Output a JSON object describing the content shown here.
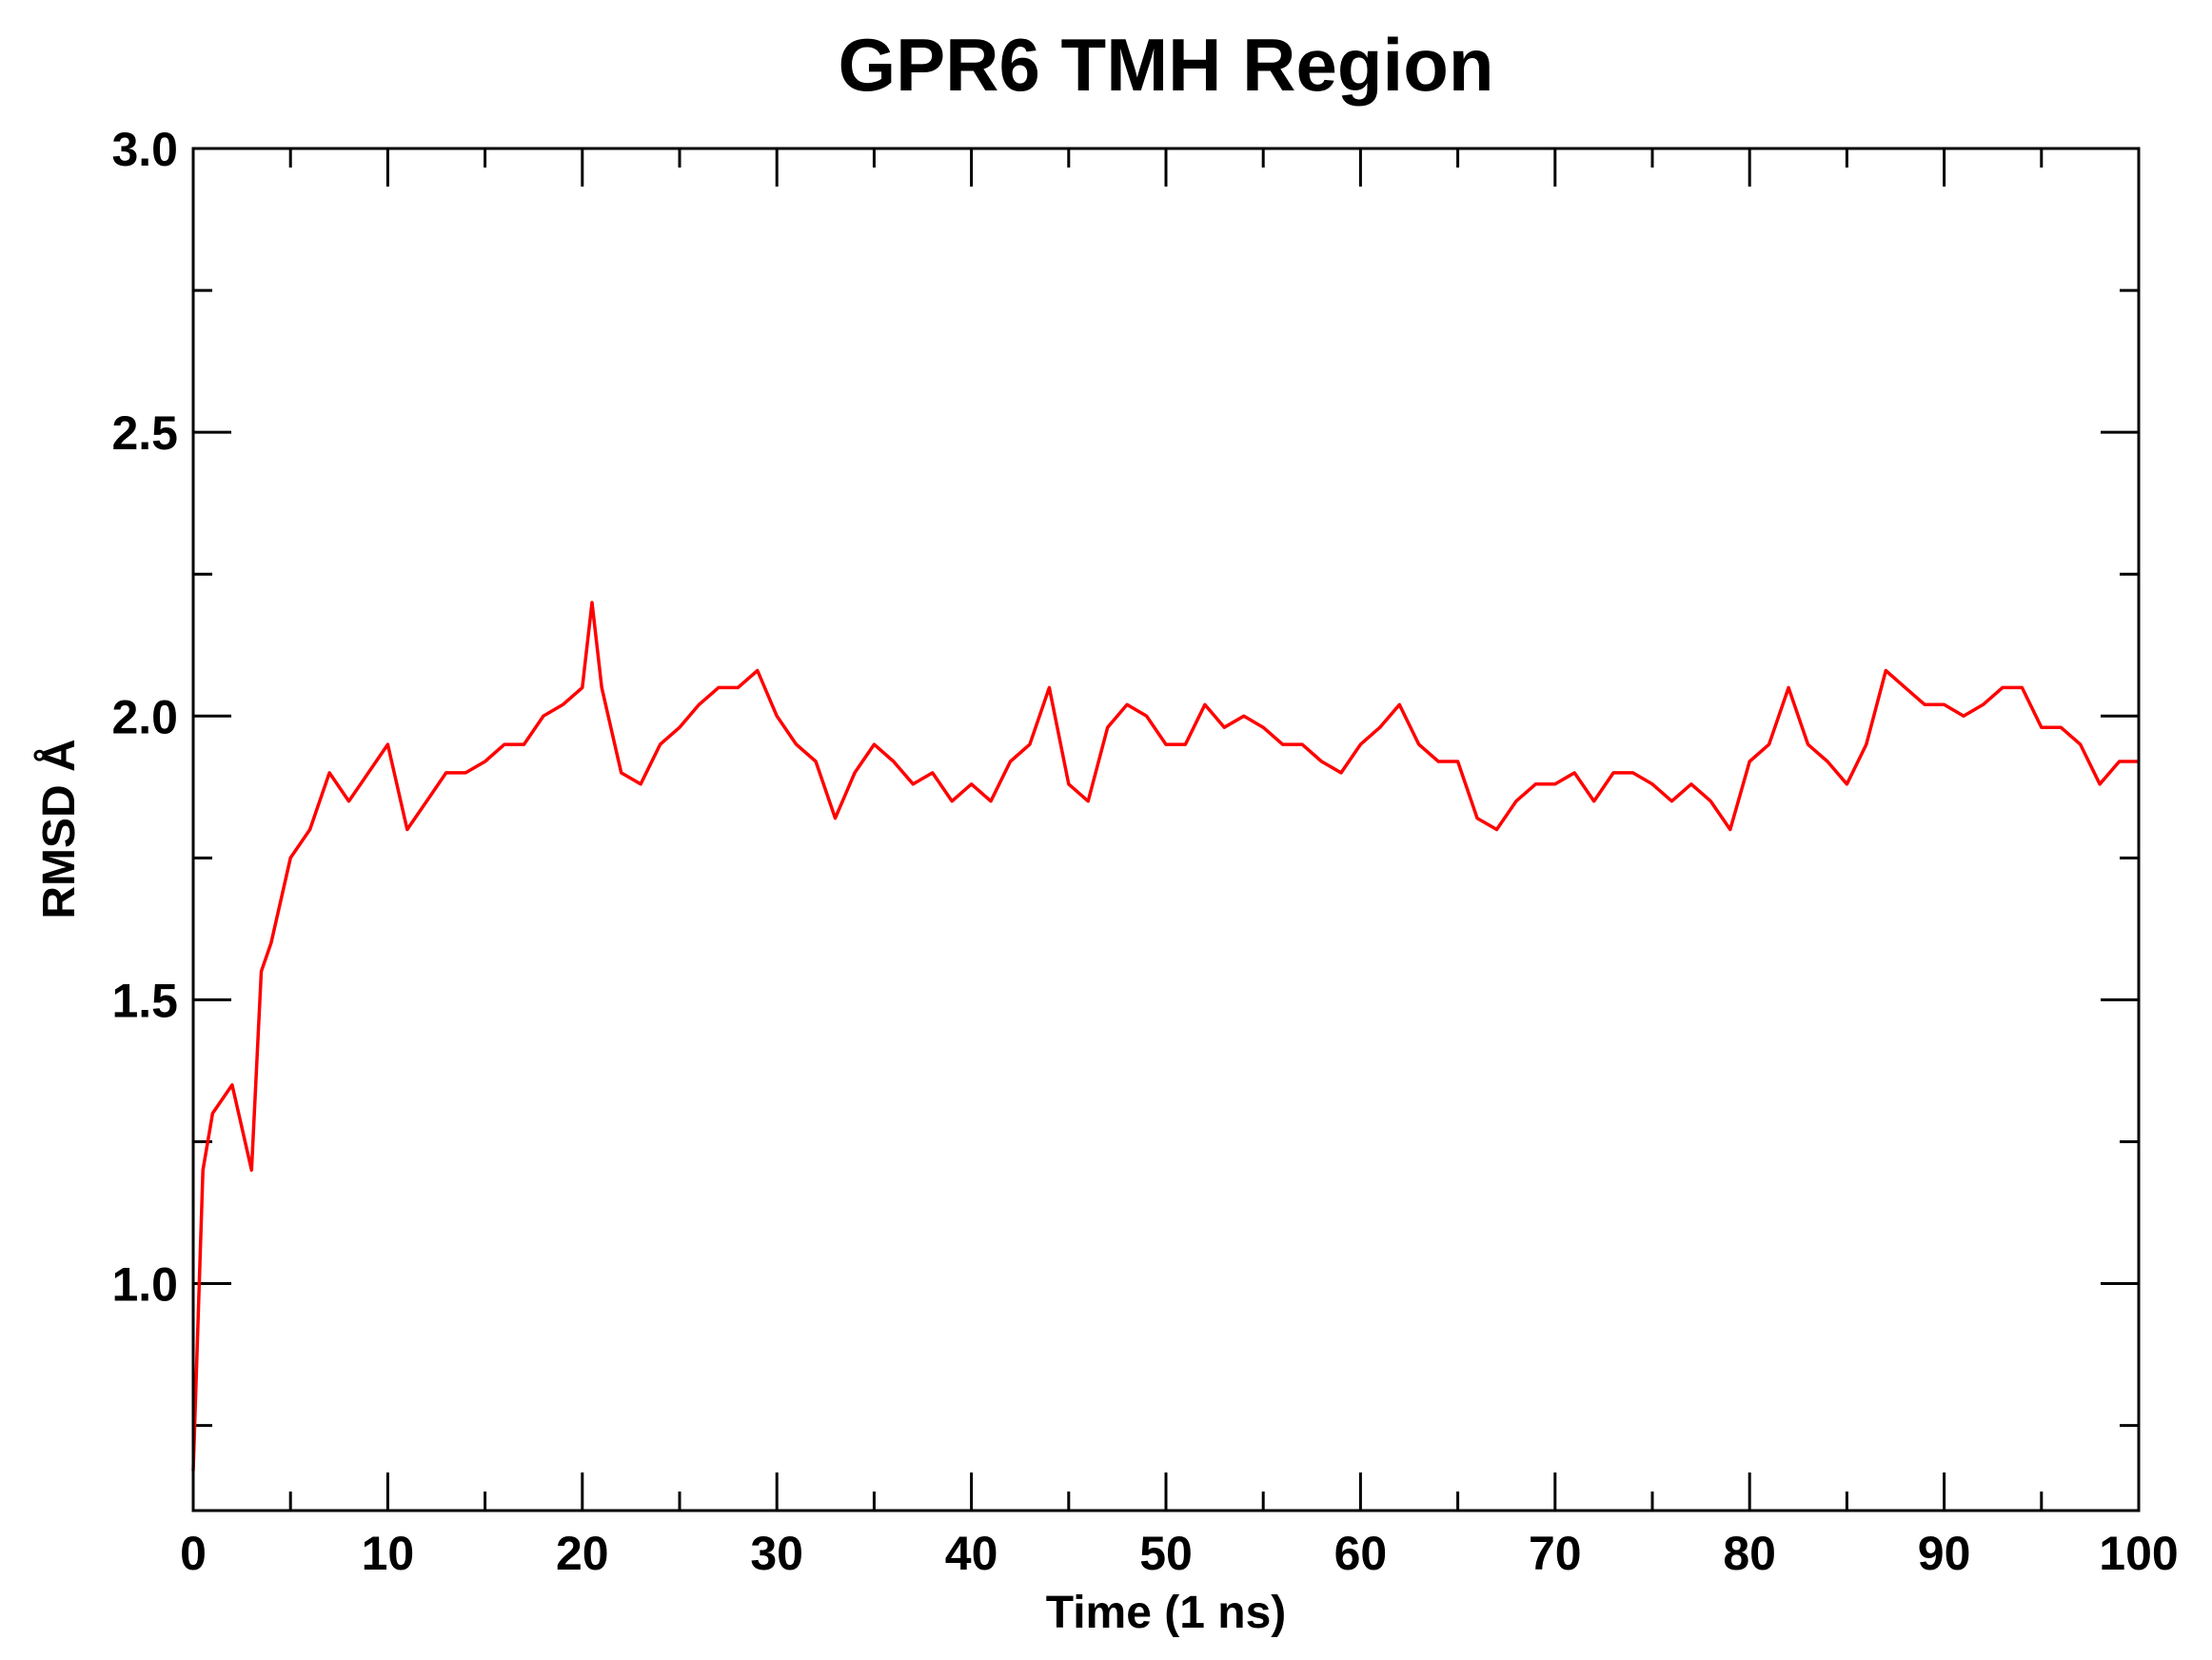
{
  "chart_data": {
    "type": "line",
    "title": "GPR6 TMH Region",
    "xlabel": "Time (1 ns)",
    "ylabel": "RMSD Å",
    "xlim": [
      0,
      100
    ],
    "ylim": [
      0.6,
      3.0
    ],
    "x_major_ticks": [
      0,
      10,
      20,
      30,
      40,
      50,
      60,
      70,
      80,
      90,
      100
    ],
    "x_tick_labels": [
      "0",
      "10",
      "20",
      "30",
      "40",
      "50",
      "60",
      "70",
      "80",
      "90",
      "100"
    ],
    "y_major_ticks": [
      1.0,
      1.5,
      2.0,
      2.5,
      3.0
    ],
    "y_tick_labels": [
      "1.0",
      "1.5",
      "2.0",
      "2.5",
      "3.0"
    ],
    "grid": false,
    "legend": null,
    "series": [
      {
        "name": "RMSD",
        "color": "#ff0000",
        "x": [
          0,
          0.5,
          1,
          2,
          3,
          3.5,
          4,
          5,
          6,
          7,
          8,
          9,
          10,
          11,
          12,
          13,
          14,
          15,
          16,
          17,
          18,
          19,
          20,
          20.5,
          21,
          22,
          23,
          24,
          25,
          26,
          27,
          28,
          29,
          30,
          31,
          32,
          33,
          34,
          35,
          36,
          37,
          38,
          39,
          40,
          41,
          42,
          43,
          44,
          45,
          46,
          47,
          48,
          49,
          50,
          51,
          52,
          53,
          54,
          55,
          56,
          57,
          58,
          59,
          60,
          61,
          62,
          63,
          64,
          65,
          66,
          67,
          68,
          69,
          70,
          71,
          72,
          73,
          74,
          75,
          76,
          77,
          78,
          79,
          80,
          81,
          82,
          83,
          84,
          85,
          86,
          87,
          88,
          89,
          90,
          91,
          92,
          93,
          94,
          95,
          96,
          97,
          98,
          99,
          100
        ],
        "values": [
          0.67,
          1.2,
          1.3,
          1.35,
          1.2,
          1.55,
          1.6,
          1.75,
          1.8,
          1.9,
          1.85,
          1.9,
          1.95,
          1.8,
          1.85,
          1.9,
          1.9,
          1.92,
          1.95,
          1.95,
          2.0,
          2.02,
          2.05,
          2.2,
          2.05,
          1.9,
          1.88,
          1.95,
          1.98,
          2.02,
          2.05,
          2.05,
          2.08,
          2.0,
          1.95,
          1.92,
          1.82,
          1.9,
          1.95,
          1.92,
          1.88,
          1.9,
          1.85,
          1.88,
          1.85,
          1.92,
          1.95,
          2.05,
          1.88,
          1.85,
          1.98,
          2.02,
          2.0,
          1.95,
          1.95,
          2.02,
          1.98,
          2.0,
          1.98,
          1.95,
          1.95,
          1.92,
          1.9,
          1.95,
          1.98,
          2.02,
          1.95,
          1.92,
          1.92,
          1.82,
          1.8,
          1.85,
          1.88,
          1.88,
          1.9,
          1.85,
          1.9,
          1.9,
          1.88,
          1.85,
          1.88,
          1.85,
          1.8,
          1.92,
          1.95,
          2.05,
          1.95,
          1.92,
          1.88,
          1.95,
          2.08,
          2.05,
          2.02,
          2.02,
          2.0,
          2.02,
          2.05,
          2.05,
          1.98,
          1.98,
          1.95,
          1.88,
          1.92,
          1.92
        ]
      }
    ]
  }
}
